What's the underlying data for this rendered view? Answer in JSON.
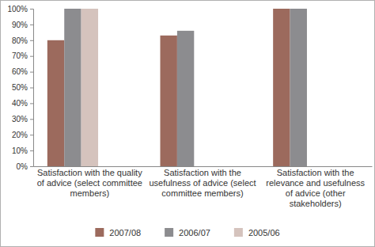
{
  "chart_data": {
    "type": "bar",
    "categories": [
      "Satisfaction with the quality of advice (select committee members)",
      "Satisfaction with the usefulness of advice (select committee members)",
      "Satisfaction with the relevance and usefulness of advice (other stakeholders)"
    ],
    "series": [
      {
        "name": "2007/08",
        "color": "#9c6a5d",
        "values": [
          80,
          83,
          100
        ]
      },
      {
        "name": "2006/07",
        "color": "#8c8c8f",
        "values": [
          100,
          86,
          100
        ]
      },
      {
        "name": "2005/06",
        "color": "#d5c3bd",
        "values": [
          100,
          null,
          null
        ]
      }
    ],
    "ylim": [
      0,
      100
    ],
    "yticks": [
      {
        "value": 0,
        "label": "0%"
      },
      {
        "value": 10,
        "label": "10%"
      },
      {
        "value": 20,
        "label": "20%"
      },
      {
        "value": 30,
        "label": "30%"
      },
      {
        "value": 40,
        "label": "40%"
      },
      {
        "value": 50,
        "label": "50%"
      },
      {
        "value": 60,
        "label": "60%"
      },
      {
        "value": 70,
        "label": "70%"
      },
      {
        "value": 80,
        "label": "80%"
      },
      {
        "value": 90,
        "label": "90%"
      },
      {
        "value": 100,
        "label": "100%"
      }
    ],
    "grid": false,
    "legend": "bottom"
  }
}
